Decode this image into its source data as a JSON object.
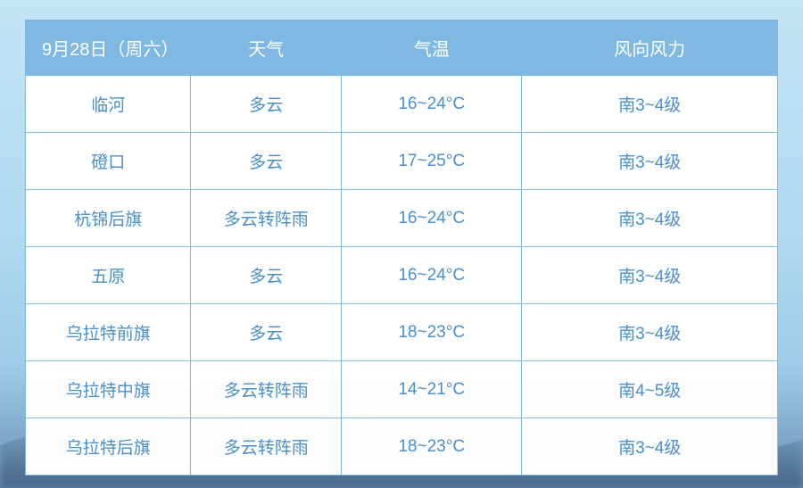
{
  "table": {
    "header": {
      "date": "9月28日（周六）",
      "weather": "天气",
      "temp": "气温",
      "wind": "风向风力"
    },
    "rows": [
      {
        "loc": "临河",
        "weather": "多云",
        "temp": "16~24°C",
        "wind": "南3~4级"
      },
      {
        "loc": "磴口",
        "weather": "多云",
        "temp": "17~25°C",
        "wind": "南3~4级"
      },
      {
        "loc": "杭锦后旗",
        "weather": "多云转阵雨",
        "temp": "16~24°C",
        "wind": "南3~4级"
      },
      {
        "loc": "五原",
        "weather": "多云",
        "temp": "16~24°C",
        "wind": "南3~4级"
      },
      {
        "loc": "乌拉特前旗",
        "weather": "多云",
        "temp": "18~23°C",
        "wind": "南3~4级"
      },
      {
        "loc": "乌拉特中旗",
        "weather": "多云转阵雨",
        "temp": "14~21°C",
        "wind": "南4~5级"
      },
      {
        "loc": "乌拉特后旗",
        "weather": "多云转阵雨",
        "temp": "18~23°C",
        "wind": "南3~4级"
      }
    ],
    "colors": {
      "header_bg": "#7fb8e3",
      "header_text": "#ffffff",
      "cell_text": "#4a8fc9",
      "border": "#7fb8e3",
      "cell_bg": "rgba(255,255,255,0.85)"
    },
    "font_sizes": {
      "header": 20,
      "cell": 19
    },
    "column_widths_pct": [
      22,
      20,
      24,
      34
    ]
  },
  "background": {
    "gradient": [
      "#c5e4f5",
      "#aed9ef",
      "#9ecce8",
      "#6a8fb5"
    ],
    "mountain_tint": "rgba(40,60,90,0.5)"
  }
}
